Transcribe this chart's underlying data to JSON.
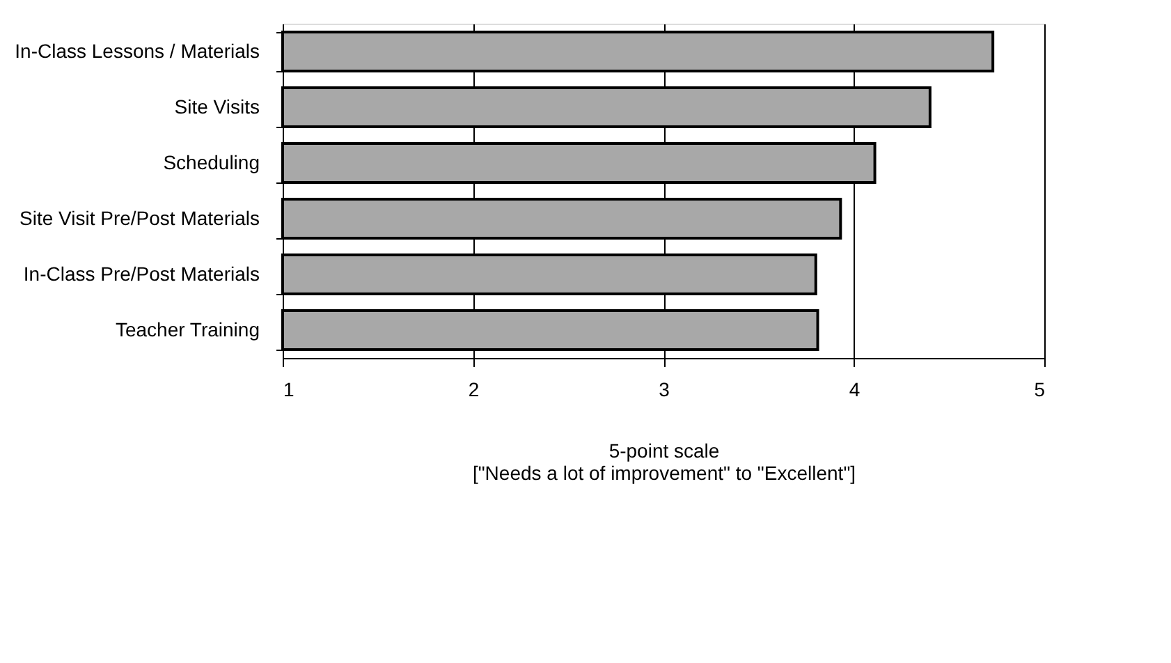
{
  "chart_data": {
    "type": "bar",
    "orientation": "horizontal",
    "xlabel": "5-point scale",
    "annotations": [
      "[\"Needs a lot of improvement\" to \"Excellent\"]"
    ],
    "categories": [
      "In-Class Lessons / Materials",
      "Site Visits",
      "Scheduling",
      "Site Visit Pre/Post Materials",
      "In-Class Pre/Post Materials",
      "Teacher Training"
    ],
    "values": [
      4.73,
      4.4,
      4.11,
      3.93,
      3.8,
      3.81
    ],
    "color": "#a8a8a8",
    "xlim": [
      1,
      5
    ],
    "xticks": [
      1,
      2,
      3,
      4,
      5
    ],
    "grid": "x"
  }
}
